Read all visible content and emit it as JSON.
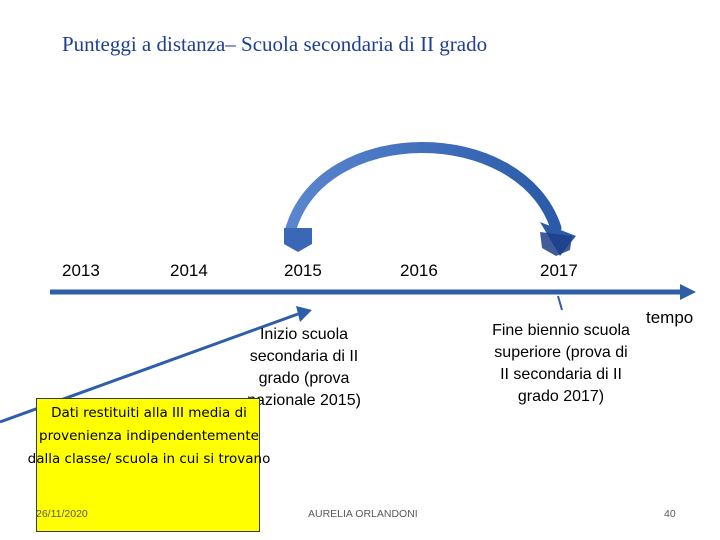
{
  "title": "Punteggi a distanza– Scuola secondaria di II grado",
  "timeline": {
    "years": [
      "2013",
      "2014",
      "2015",
      "2016",
      "2017"
    ],
    "axis_label": "tempo"
  },
  "annotations": {
    "start_2015": "Inizio scuola secondaria di II grado (prova nazionale 2015)",
    "end_2017": "Fine biennio scuola superiore (prova di II secondaria di II grado 2017)",
    "note": "Dati restituiti alla III media di provenienza indipendentemente dalla classe/ scuola in cui si trovano"
  },
  "footer": {
    "date": "26/11/2020",
    "author": "AURELIA ORLANDONI",
    "page": "40"
  },
  "colors": {
    "title": "#1f3f8f",
    "arrow": "#2e5ea8",
    "note_bg": "#ffff00"
  }
}
